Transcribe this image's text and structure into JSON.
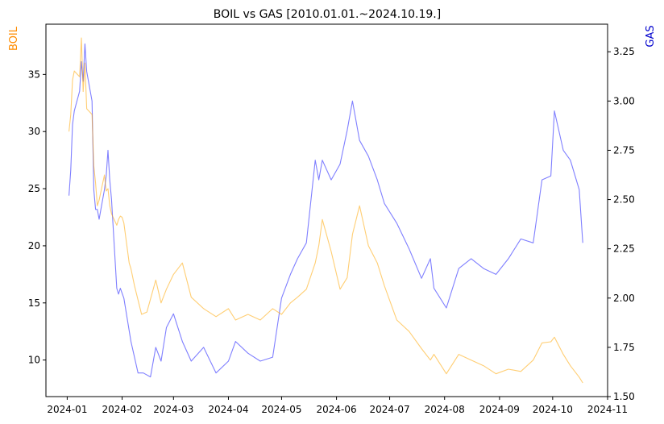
{
  "chart_data": {
    "type": "line",
    "title": "BOIL vs GAS [2010.01.01.~2024.10.19.]",
    "ylabel_left": "BOIL",
    "ylabel_right": "GAS",
    "ylim_left": [
      6.8,
      39.4
    ],
    "ylim_right": [
      1.5,
      3.39
    ],
    "xlim": [
      "2023-12-20",
      "2024-11-01"
    ],
    "x_ticks": [
      {
        "date": "2024-01-01",
        "label": "2024-01"
      },
      {
        "date": "2024-02-01",
        "label": "2024-02"
      },
      {
        "date": "2024-03-01",
        "label": "2024-03"
      },
      {
        "date": "2024-04-01",
        "label": "2024-04"
      },
      {
        "date": "2024-05-01",
        "label": "2024-05"
      },
      {
        "date": "2024-06-01",
        "label": "2024-06"
      },
      {
        "date": "2024-07-01",
        "label": "2024-07"
      },
      {
        "date": "2024-08-01",
        "label": "2024-08"
      },
      {
        "date": "2024-09-01",
        "label": "2024-09"
      },
      {
        "date": "2024-10-01",
        "label": "2024-10"
      },
      {
        "date": "2024-11-01",
        "label": "2024-11"
      }
    ],
    "y_ticks_left": [
      "10",
      "15",
      "20",
      "25",
      "30",
      "35"
    ],
    "y_ticks_right": [
      "1.50",
      "1.75",
      "2.00",
      "2.25",
      "2.50",
      "2.75",
      "3.00",
      "3.25"
    ],
    "colors": {
      "boil": "#ffa500",
      "gas": "#0000ff",
      "left_label": "#ff8c00",
      "right_label": "#0000cd"
    },
    "series": [
      {
        "key": "boil",
        "axis": "left",
        "x": [
          "2024-01-02",
          "2024-01-03",
          "2024-01-04",
          "2024-01-05",
          "2024-01-08",
          "2024-01-09",
          "2024-01-10",
          "2024-01-11",
          "2024-01-12",
          "2024-01-15",
          "2024-01-16",
          "2024-01-17",
          "2024-01-18",
          "2024-01-19",
          "2024-01-22",
          "2024-01-23",
          "2024-01-24",
          "2024-01-25",
          "2024-01-26",
          "2024-01-29",
          "2024-01-30",
          "2024-01-31",
          "2024-02-01",
          "2024-02-02",
          "2024-02-05",
          "2024-02-06",
          "2024-02-08",
          "2024-02-12",
          "2024-02-15",
          "2024-02-20",
          "2024-02-23",
          "2024-02-26",
          "2024-03-01",
          "2024-03-06",
          "2024-03-11",
          "2024-03-18",
          "2024-03-25",
          "2024-04-01",
          "2024-04-05",
          "2024-04-12",
          "2024-04-19",
          "2024-04-26",
          "2024-05-01",
          "2024-05-06",
          "2024-05-10",
          "2024-05-15",
          "2024-05-20",
          "2024-05-22",
          "2024-05-24",
          "2024-05-29",
          "2024-06-03",
          "2024-06-07",
          "2024-06-10",
          "2024-06-14",
          "2024-06-19",
          "2024-06-24",
          "2024-06-28",
          "2024-07-05",
          "2024-07-12",
          "2024-07-19",
          "2024-07-24",
          "2024-07-26",
          "2024-08-02",
          "2024-08-09",
          "2024-08-16",
          "2024-08-23",
          "2024-08-30",
          "2024-09-06",
          "2024-09-13",
          "2024-09-20",
          "2024-09-25",
          "2024-09-30",
          "2024-10-02",
          "2024-10-07",
          "2024-10-11",
          "2024-10-16",
          "2024-10-18"
        ],
        "y": [
          30,
          31.5,
          34.5,
          35.3,
          34.8,
          38.2,
          33.5,
          36,
          32,
          31.5,
          27,
          25.5,
          23.5,
          24,
          26.2,
          24.8,
          25,
          23.5,
          22.8,
          21.8,
          22.3,
          22.6,
          22.5,
          22,
          18.5,
          18,
          16.5,
          14,
          14.2,
          17,
          15,
          16.2,
          17.5,
          18.5,
          15.5,
          14.5,
          13.8,
          14.5,
          13.5,
          14,
          13.5,
          14.5,
          14,
          15,
          15.5,
          16.2,
          18.5,
          20,
          22.3,
          19.5,
          16.2,
          17.2,
          21,
          23.5,
          20,
          18.5,
          16.5,
          13.5,
          12.5,
          11,
          10,
          10.5,
          8.8,
          10.5,
          10,
          9.5,
          8.8,
          9.2,
          9,
          10,
          11.5,
          11.6,
          12,
          10.5,
          9.5,
          8.5,
          8
        ]
      },
      {
        "key": "gas",
        "axis": "right",
        "x": [
          "2024-01-02",
          "2024-01-03",
          "2024-01-04",
          "2024-01-05",
          "2024-01-08",
          "2024-01-09",
          "2024-01-10",
          "2024-01-11",
          "2024-01-12",
          "2024-01-15",
          "2024-01-16",
          "2024-01-17",
          "2024-01-18",
          "2024-01-19",
          "2024-01-22",
          "2024-01-23",
          "2024-01-24",
          "2024-01-25",
          "2024-01-26",
          "2024-01-29",
          "2024-01-30",
          "2024-01-31",
          "2024-02-02",
          "2024-02-06",
          "2024-02-10",
          "2024-02-13",
          "2024-02-17",
          "2024-02-20",
          "2024-02-23",
          "2024-02-26",
          "2024-03-01",
          "2024-03-06",
          "2024-03-11",
          "2024-03-18",
          "2024-03-25",
          "2024-04-01",
          "2024-04-05",
          "2024-04-12",
          "2024-04-19",
          "2024-04-26",
          "2024-05-01",
          "2024-05-06",
          "2024-05-10",
          "2024-05-15",
          "2024-05-20",
          "2024-05-22",
          "2024-05-24",
          "2024-05-29",
          "2024-06-03",
          "2024-06-07",
          "2024-06-10",
          "2024-06-14",
          "2024-06-19",
          "2024-06-24",
          "2024-06-28",
          "2024-07-05",
          "2024-07-12",
          "2024-07-19",
          "2024-07-24",
          "2024-07-26",
          "2024-08-02",
          "2024-08-09",
          "2024-08-16",
          "2024-08-23",
          "2024-08-30",
          "2024-09-06",
          "2024-09-13",
          "2024-09-20",
          "2024-09-25",
          "2024-09-30",
          "2024-10-02",
          "2024-10-07",
          "2024-10-11",
          "2024-10-16",
          "2024-10-18"
        ],
        "y": [
          2.52,
          2.65,
          2.88,
          2.95,
          3.05,
          3.2,
          3.1,
          3.29,
          3.15,
          3.0,
          2.55,
          2.45,
          2.45,
          2.4,
          2.55,
          2.62,
          2.75,
          2.6,
          2.5,
          2.05,
          2.02,
          2.05,
          2.0,
          1.78,
          1.62,
          1.62,
          1.6,
          1.75,
          1.68,
          1.85,
          1.92,
          1.78,
          1.68,
          1.75,
          1.62,
          1.68,
          1.78,
          1.72,
          1.68,
          1.7,
          2.0,
          2.12,
          2.2,
          2.28,
          2.7,
          2.6,
          2.7,
          2.6,
          2.68,
          2.85,
          3.0,
          2.8,
          2.72,
          2.6,
          2.48,
          2.38,
          2.25,
          2.1,
          2.2,
          2.05,
          1.95,
          2.15,
          2.2,
          2.15,
          2.12,
          2.2,
          2.3,
          2.28,
          2.6,
          2.62,
          2.95,
          2.75,
          2.7,
          2.55,
          2.28
        ]
      }
    ]
  }
}
